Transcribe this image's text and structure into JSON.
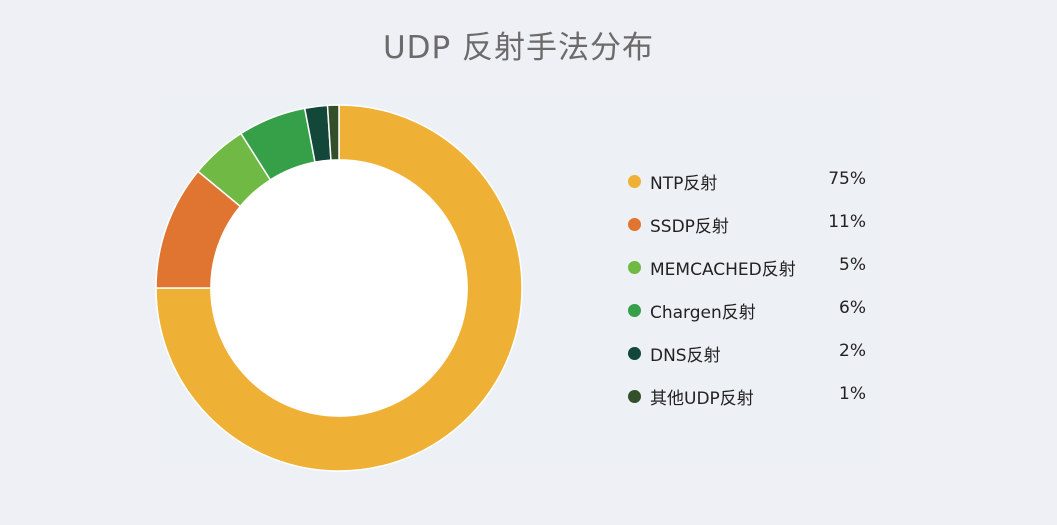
{
  "chart_data": {
    "type": "pie",
    "title": "UDP 反射手法分布",
    "inner_radius_ratio": 0.7,
    "legend_position": "right",
    "slices": [
      {
        "label": "NTP反射",
        "value": 75,
        "display": "75%",
        "color": "#efb135"
      },
      {
        "label": "SSDP反射",
        "value": 11,
        "display": "11%",
        "color": "#df7531"
      },
      {
        "label": "MEMCACHED反射",
        "value": 5,
        "display": "5%",
        "color": "#6fb944"
      },
      {
        "label": "Chargen反射",
        "value": 6,
        "display": "6%",
        "color": "#35a048"
      },
      {
        "label": "DNS反射",
        "value": 2,
        "display": "2%",
        "color": "#13473a"
      },
      {
        "label": "其他UDP反射",
        "value": 1,
        "display": "1%",
        "color": "#34502b"
      }
    ]
  }
}
